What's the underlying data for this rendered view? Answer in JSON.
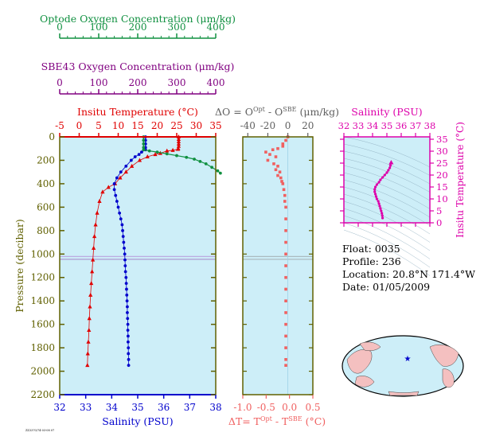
{
  "colors": {
    "optode": "#109040",
    "sbe43": "#800080",
    "temperature": "#e00000",
    "salinity": "#0000cc",
    "delta": "#f06060",
    "inset": "#dd00aa",
    "pressure_axis": "#606000",
    "panel_bg": "#cdeef8",
    "delta_o_label": "#606060"
  },
  "text": {
    "optode_title": "Optode Oxygen Concentration (μm/kg)",
    "sbe43_title": "SBE43 Oxygen Concentration (μm/kg)",
    "temp_title": "Insitu Temperature (°C)",
    "delta_o_title": "ΔO = O",
    "delta_o_sup1": "Opt",
    "delta_o_mid": " - O",
    "delta_o_sup2": "SBE",
    "delta_o_unit": " (μm/kg)",
    "salinity_top_title": "Salinity (PSU)",
    "inset_ylabel": "Insitu Temperature (°C)",
    "pressure_label": "Pressure (decibar)",
    "salinity_bottom_label": "Salinity (PSU)",
    "delta_t_label": "ΔT= T",
    "delta_t_sup1": "Opt",
    "delta_t_mid": " - T",
    "delta_t_sup2": "SBE",
    "delta_t_unit": " (°C)",
    "float_line": "Float:  0035",
    "profile_line": "Profile:  236",
    "location_line": "Location:  20.8°N  171.4°W",
    "date_line": "Date:  01/05/2009",
    "tiny_stamp": "ZZ3370/74-03-08 07"
  },
  "chart_data": [
    {
      "type": "line",
      "name": "main-profile",
      "pressure_ylim": [
        0,
        2200
      ],
      "pressure_ticks": [
        0,
        200,
        400,
        600,
        800,
        1000,
        1200,
        1400,
        1600,
        1800,
        2000,
        2200
      ],
      "temperature_xlim": [
        -5,
        35
      ],
      "temperature_ticks": [
        -5,
        0,
        5,
        10,
        15,
        20,
        25,
        30,
        35
      ],
      "salinity_xlim": [
        32,
        38
      ],
      "salinity_ticks": [
        32,
        33,
        34,
        35,
        36,
        37,
        38
      ],
      "oxygen_xlim": [
        0,
        400
      ],
      "optode_ticks": [
        0,
        100,
        200,
        300,
        400
      ],
      "sbe43_ticks": [
        0,
        100,
        200,
        300,
        400
      ],
      "reference_lines_pressure": [
        1020,
        1045
      ],
      "series": [
        {
          "key": "temperature",
          "marker": "triangle",
          "points": [
            [
              25.5,
              0
            ],
            [
              25.5,
              20
            ],
            [
              25.5,
              40
            ],
            [
              25.5,
              60
            ],
            [
              25.5,
              80
            ],
            [
              25.4,
              100
            ],
            [
              25.3,
              105
            ],
            [
              24,
              115
            ],
            [
              22.5,
              120
            ],
            [
              20.8,
              140
            ],
            [
              19.5,
              150
            ],
            [
              17.5,
              170
            ],
            [
              15.5,
              200
            ],
            [
              13.5,
              250
            ],
            [
              12,
              300
            ],
            [
              10.5,
              350
            ],
            [
              9.2,
              400
            ],
            [
              7.5,
              430
            ],
            [
              6,
              470
            ],
            [
              5.2,
              550
            ],
            [
              4.6,
              650
            ],
            [
              4.2,
              750
            ],
            [
              3.9,
              850
            ],
            [
              3.7,
              950
            ],
            [
              3.5,
              1050
            ],
            [
              3.3,
              1150
            ],
            [
              3.1,
              1250
            ],
            [
              2.9,
              1350
            ],
            [
              2.75,
              1450
            ],
            [
              2.6,
              1550
            ],
            [
              2.5,
              1650
            ],
            [
              2.35,
              1750
            ],
            [
              2.2,
              1850
            ],
            [
              2.1,
              1950
            ]
          ]
        },
        {
          "key": "salinity",
          "marker": "circle",
          "points": [
            [
              35.3,
              0
            ],
            [
              35.3,
              30
            ],
            [
              35.3,
              60
            ],
            [
              35.3,
              90
            ],
            [
              35.3,
              110
            ],
            [
              35.15,
              130
            ],
            [
              35.05,
              150
            ],
            [
              34.9,
              170
            ],
            [
              34.75,
              200
            ],
            [
              34.55,
              250
            ],
            [
              34.35,
              300
            ],
            [
              34.2,
              350
            ],
            [
              34.1,
              400
            ],
            [
              34.1,
              450
            ],
            [
              34.15,
              500
            ],
            [
              34.2,
              550
            ],
            [
              34.25,
              600
            ],
            [
              34.3,
              650
            ],
            [
              34.35,
              700
            ],
            [
              34.4,
              750
            ],
            [
              34.42,
              800
            ],
            [
              34.44,
              850
            ],
            [
              34.46,
              900
            ],
            [
              34.48,
              950
            ],
            [
              34.5,
              1000
            ],
            [
              34.51,
              1050
            ],
            [
              34.52,
              1100
            ],
            [
              34.53,
              1150
            ],
            [
              34.55,
              1200
            ],
            [
              34.56,
              1250
            ],
            [
              34.57,
              1300
            ],
            [
              34.58,
              1350
            ],
            [
              34.59,
              1400
            ],
            [
              34.6,
              1450
            ],
            [
              34.6,
              1500
            ],
            [
              34.61,
              1550
            ],
            [
              34.62,
              1600
            ],
            [
              34.62,
              1650
            ],
            [
              34.63,
              1700
            ],
            [
              34.63,
              1750
            ],
            [
              34.64,
              1800
            ],
            [
              34.64,
              1850
            ],
            [
              34.65,
              1900
            ],
            [
              34.65,
              1950
            ]
          ]
        },
        {
          "key": "optode",
          "marker": "circle",
          "points": [
            [
              215,
              0
            ],
            [
              215,
              30
            ],
            [
              215,
              60
            ],
            [
              215,
              90
            ],
            [
              215,
              110
            ],
            [
              230,
              120
            ],
            [
              250,
              130
            ],
            [
              275,
              145
            ],
            [
              300,
              160
            ],
            [
              325,
              175
            ],
            [
              345,
              190
            ],
            [
              360,
              210
            ],
            [
              375,
              230
            ],
            [
              390,
              260
            ],
            [
              405,
              290
            ],
            [
              412,
              310
            ]
          ]
        }
      ]
    },
    {
      "type": "scatter",
      "name": "delta-profile",
      "delta_o_xlim": [
        -45,
        25
      ],
      "delta_o_ticks": [
        -40,
        -20,
        0,
        20
      ],
      "delta_t_xlim": [
        -1.0,
        0.5
      ],
      "delta_t_ticks": [
        -1.0,
        -0.5,
        0.0,
        0.5
      ],
      "points": [
        [
          0,
          0
        ],
        [
          -2,
          30
        ],
        [
          -5,
          60
        ],
        [
          -5,
          80
        ],
        [
          -10,
          100
        ],
        [
          -15,
          110
        ],
        [
          -22,
          130
        ],
        [
          -18,
          150
        ],
        [
          -12,
          170
        ],
        [
          -20,
          200
        ],
        [
          -14,
          230
        ],
        [
          -10,
          250
        ],
        [
          -12,
          280
        ],
        [
          -8,
          300
        ],
        [
          -10,
          330
        ],
        [
          -7,
          350
        ],
        [
          -6,
          380
        ],
        [
          -5,
          400
        ],
        [
          -4,
          450
        ],
        [
          -3,
          500
        ],
        [
          -3,
          550
        ],
        [
          -2,
          600
        ],
        [
          -2,
          700
        ],
        [
          -2,
          800
        ],
        [
          -2,
          900
        ],
        [
          -2,
          1000
        ],
        [
          -2,
          1100
        ],
        [
          -2,
          1200
        ],
        [
          -2,
          1300
        ],
        [
          -2,
          1400
        ],
        [
          -2,
          1500
        ],
        [
          -2,
          1600
        ],
        [
          -2,
          1700
        ],
        [
          -2,
          1800
        ],
        [
          -2,
          1900
        ],
        [
          -2,
          1950
        ]
      ]
    },
    {
      "type": "line",
      "name": "ts-inset",
      "salinity_xlim": [
        32,
        38
      ],
      "salinity_ticks": [
        32,
        33,
        34,
        35,
        36,
        37,
        38
      ],
      "temperature_ylim": [
        0,
        36
      ],
      "temperature_ticks": [
        0,
        5,
        10,
        15,
        20,
        25,
        30,
        35
      ],
      "points": [
        [
          34.7,
          2
        ],
        [
          34.68,
          3
        ],
        [
          34.65,
          4
        ],
        [
          34.6,
          5
        ],
        [
          34.55,
          6
        ],
        [
          34.5,
          7
        ],
        [
          34.45,
          8
        ],
        [
          34.4,
          9
        ],
        [
          34.3,
          10
        ],
        [
          34.25,
          11
        ],
        [
          34.2,
          12
        ],
        [
          34.15,
          13
        ],
        [
          34.15,
          14
        ],
        [
          34.2,
          15
        ],
        [
          34.3,
          16
        ],
        [
          34.45,
          17
        ],
        [
          34.55,
          18
        ],
        [
          34.7,
          19
        ],
        [
          34.85,
          20
        ],
        [
          35,
          21
        ],
        [
          35.1,
          22
        ],
        [
          35.2,
          23
        ],
        [
          35.25,
          24
        ],
        [
          35.3,
          25
        ]
      ]
    }
  ]
}
